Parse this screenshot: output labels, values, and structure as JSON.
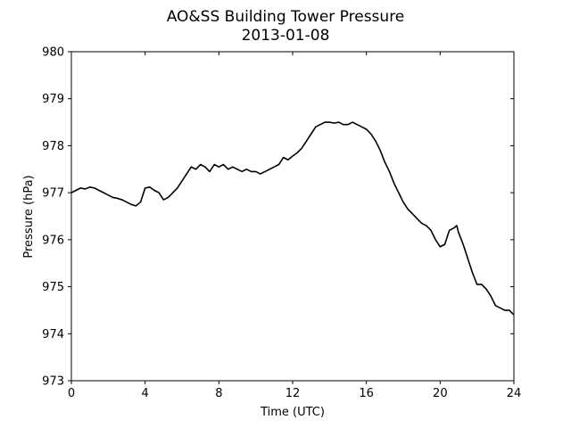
{
  "chart_data": {
    "type": "line",
    "title": "AO&SS Building Tower Pressure",
    "subtitle": "2013-01-08",
    "xlabel": "Time (UTC)",
    "ylabel": "Pressure (hPa)",
    "xlim": [
      0,
      24
    ],
    "ylim": [
      973,
      980
    ],
    "xticks": [
      0,
      4,
      8,
      12,
      16,
      20,
      24
    ],
    "yticks": [
      973,
      974,
      975,
      976,
      977,
      978,
      979,
      980
    ],
    "grid": false,
    "line_color": "#000000",
    "series": [
      {
        "x": [
          0,
          0.25,
          0.5,
          0.75,
          1,
          1.25,
          1.5,
          1.75,
          2,
          2.25,
          2.5,
          2.75,
          3,
          3.25,
          3.5,
          3.75,
          4,
          4.25,
          4.5,
          4.75,
          5,
          5.25,
          5.5,
          5.75,
          6,
          6.25,
          6.5,
          6.75,
          7,
          7.25,
          7.5,
          7.75,
          8,
          8.25,
          8.5,
          8.75,
          9,
          9.25,
          9.5,
          9.75,
          10,
          10.25,
          10.5,
          10.75,
          11,
          11.25,
          11.5,
          11.75,
          12,
          12.25,
          12.5,
          12.75,
          13,
          13.25,
          13.5,
          13.75,
          14,
          14.25,
          14.5,
          14.75,
          15,
          15.25,
          15.5,
          15.75,
          16,
          16.25,
          16.5,
          16.75,
          17,
          17.25,
          17.5,
          17.75,
          18,
          18.25,
          18.5,
          18.75,
          19,
          19.25,
          19.5,
          19.75,
          20,
          20.25,
          20.5,
          20.75,
          20.9,
          21,
          21.25,
          21.5,
          21.75,
          22,
          22.25,
          22.5,
          22.75,
          23,
          23.25,
          23.5,
          23.75,
          24
        ],
        "y": [
          977.0,
          977.05,
          977.1,
          977.08,
          977.12,
          977.1,
          977.05,
          977.0,
          976.95,
          976.9,
          976.88,
          976.85,
          976.8,
          976.75,
          976.72,
          976.8,
          977.1,
          977.12,
          977.05,
          977.0,
          976.85,
          976.9,
          977.0,
          977.1,
          977.25,
          977.4,
          977.55,
          977.5,
          977.6,
          977.55,
          977.45,
          977.6,
          977.55,
          977.6,
          977.5,
          977.55,
          977.5,
          977.45,
          977.5,
          977.45,
          977.45,
          977.4,
          977.45,
          977.5,
          977.55,
          977.6,
          977.75,
          977.7,
          977.78,
          977.85,
          977.95,
          978.1,
          978.25,
          978.4,
          978.45,
          978.5,
          978.5,
          978.48,
          978.5,
          978.45,
          978.45,
          978.5,
          978.45,
          978.4,
          978.35,
          978.25,
          978.1,
          977.9,
          977.65,
          977.45,
          977.2,
          977.0,
          976.8,
          976.65,
          976.55,
          976.45,
          976.35,
          976.3,
          976.2,
          976.0,
          975.85,
          975.9,
          976.2,
          976.25,
          976.3,
          976.15,
          975.9,
          975.6,
          975.3,
          975.05,
          975.05,
          974.95,
          974.8,
          974.6,
          974.55,
          974.5,
          974.5,
          974.4
        ]
      }
    ]
  }
}
